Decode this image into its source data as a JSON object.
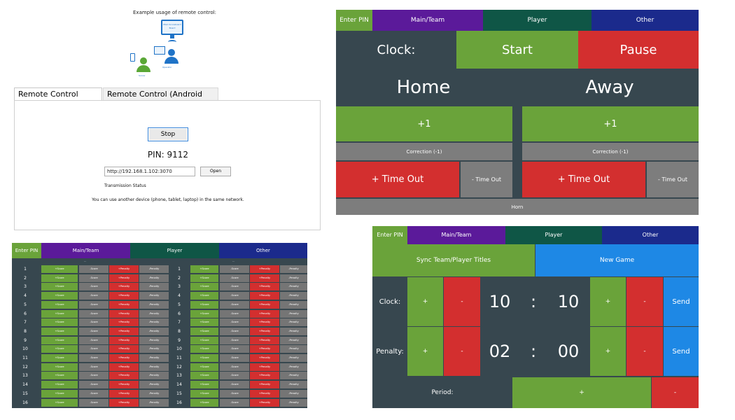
{
  "colors": {
    "green": "#6aa33a",
    "red": "#d32f2f",
    "gray": "#7d7d7d",
    "blue": "#1e88e5",
    "dark": "#37474f",
    "purple": "#5b1a9a",
    "dark_green": "#0f5646",
    "navy": "#1b2a8c"
  },
  "tabs": {
    "enter_pin": "Enter PIN",
    "main_team": "Main/Team",
    "player": "Player",
    "other": "Other"
  },
  "remote": {
    "illustration_title": "Example usage of remote control:",
    "monitor_label": "Main Scoreboard Board",
    "phone_label": "Scorer",
    "operator_label": "Operator",
    "tab_web": "Remote Control (WEB)",
    "tab_android": "Remote Control (Android App)",
    "stop_label": "Stop",
    "pin_text": "PIN: 9112",
    "url_value": "http://192.168.1.102:3070",
    "open_label": "Open",
    "transmission_status": "Transmission Status",
    "hint": "You can use another device (phone, tablet, laptop) in the same network."
  },
  "control": {
    "clock_label": "Clock:",
    "start_label": "Start",
    "pause_label": "Pause",
    "home_label": "Home",
    "away_label": "Away",
    "plus_one": "+1",
    "correction": "Correction (-1)",
    "plus_timeout": "+ Time Out",
    "minus_timeout": "- Time Out",
    "horn": "Horn"
  },
  "players": {
    "header_home": "---",
    "header_away": "---",
    "plus_score": "+Score",
    "minus_score": "-Score",
    "plus_penalty": "+Penalty",
    "minus_penalty": "-Penalty",
    "rows": [
      "1",
      "2",
      "3",
      "4",
      "5",
      "6",
      "7",
      "8",
      "9",
      "10",
      "11",
      "12",
      "13",
      "14",
      "15",
      "16"
    ]
  },
  "clock_setup": {
    "sync_label": "Sync Team/Player Titles",
    "new_game_label": "New Game",
    "clock_label": "Clock:",
    "penalty_label": "Penalty:",
    "period_label": "Period:",
    "plus": "+",
    "minus": "-",
    "send": "Send",
    "colon": ":",
    "clock_min": "10",
    "clock_sec": "10",
    "penalty_min": "02",
    "penalty_sec": "00"
  }
}
